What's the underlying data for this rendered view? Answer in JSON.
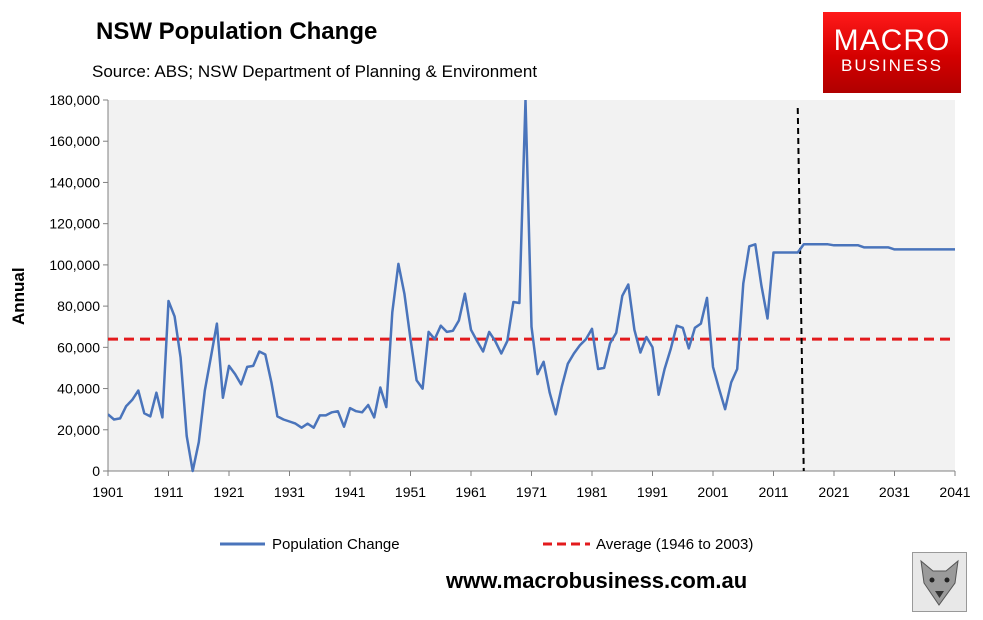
{
  "header": {
    "title": "NSW Population Change",
    "source": "Source: ABS; NSW Department of Planning & Environment"
  },
  "logo": {
    "line1": "MACRO",
    "line2": "BUSINESS"
  },
  "footer": {
    "url": "www.macrobusiness.com.au"
  },
  "chart_data": {
    "type": "line",
    "title": "NSW Population Change",
    "xlabel": "",
    "ylabel": "Annual",
    "xlim": [
      1901,
      2041
    ],
    "ylim": [
      0,
      180000
    ],
    "x_ticks": [
      1901,
      1911,
      1921,
      1931,
      1941,
      1951,
      1961,
      1971,
      1981,
      1991,
      2001,
      2011,
      2021,
      2031,
      2041
    ],
    "y_ticks": [
      0,
      20000,
      40000,
      60000,
      80000,
      100000,
      120000,
      140000,
      160000,
      180000
    ],
    "x_tick_labels": [
      "1901",
      "1911",
      "1921",
      "1931",
      "1941",
      "1951",
      "1961",
      "1971",
      "1981",
      "1991",
      "2001",
      "2011",
      "2021",
      "2031",
      "2041"
    ],
    "y_tick_labels": [
      "0",
      "20,000",
      "40,000",
      "60,000",
      "80,000",
      "100,000",
      "120,000",
      "140,000",
      "160,000",
      "180,000"
    ],
    "grid": false,
    "legend_position": "bottom",
    "series": [
      {
        "name": "Population Change",
        "style": "solid",
        "color": "#4a74bb",
        "x": [
          1901,
          1902,
          1903,
          1904,
          1905,
          1906,
          1907,
          1908,
          1909,
          1910,
          1911,
          1912,
          1913,
          1914,
          1915,
          1916,
          1917,
          1918,
          1919,
          1920,
          1921,
          1922,
          1923,
          1924,
          1925,
          1926,
          1927,
          1928,
          1929,
          1930,
          1931,
          1932,
          1933,
          1934,
          1935,
          1936,
          1937,
          1938,
          1939,
          1940,
          1941,
          1942,
          1943,
          1944,
          1945,
          1946,
          1947,
          1948,
          1949,
          1950,
          1951,
          1952,
          1953,
          1954,
          1955,
          1956,
          1957,
          1958,
          1959,
          1960,
          1961,
          1962,
          1963,
          1964,
          1965,
          1966,
          1967,
          1968,
          1969,
          1970,
          1971,
          1972,
          1973,
          1974,
          1975,
          1976,
          1977,
          1978,
          1979,
          1980,
          1981,
          1982,
          1983,
          1984,
          1985,
          1986,
          1987,
          1988,
          1989,
          1990,
          1991,
          1992,
          1993,
          1994,
          1995,
          1996,
          1997,
          1998,
          1999,
          2000,
          2001,
          2002,
          2003,
          2004,
          2005,
          2006,
          2007,
          2008,
          2009,
          2010,
          2011,
          2012,
          2013,
          2014,
          2015,
          2016,
          2017,
          2018,
          2019,
          2020,
          2021,
          2022,
          2023,
          2024,
          2025,
          2026,
          2027,
          2028,
          2029,
          2030,
          2031,
          2032,
          2033,
          2034,
          2035,
          2036,
          2037,
          2038,
          2039,
          2040,
          2041
        ],
        "values": [
          27500,
          25000,
          25500,
          31500,
          34500,
          39000,
          28000,
          26500,
          38000,
          26000,
          82500,
          75000,
          55000,
          17000,
          0,
          14000,
          39000,
          55000,
          71500,
          35500,
          51000,
          47000,
          42000,
          50500,
          51000,
          58000,
          56500,
          43000,
          26500,
          25000,
          24000,
          23000,
          21000,
          23000,
          21000,
          27000,
          27000,
          28500,
          29000,
          21500,
          30500,
          29000,
          28500,
          32000,
          26000,
          40500,
          31000,
          77000,
          100500,
          86000,
          64000,
          44000,
          40000,
          67500,
          64000,
          70500,
          67500,
          68000,
          73000,
          86000,
          68500,
          63000,
          58000,
          67500,
          63000,
          57000,
          63000,
          82000,
          81500,
          180000,
          70000,
          47000,
          53000,
          38000,
          27500,
          41000,
          52000,
          57000,
          61000,
          64000,
          69000,
          49500,
          50000,
          62000,
          67000,
          85000,
          90500,
          68500,
          57500,
          65000,
          60000,
          37000,
          49500,
          59000,
          70500,
          69500,
          59500,
          69500,
          71500,
          84000,
          50500,
          40000,
          30000,
          43000,
          49500,
          91000,
          109000,
          110000,
          90000,
          74000,
          106000,
          106000,
          106000,
          106000,
          106000,
          110000,
          110000,
          110000,
          110000,
          110000,
          109500,
          109500,
          109500,
          109500,
          109500,
          108500,
          108500,
          108500,
          108500,
          108500,
          107500,
          107500,
          107500,
          107500,
          107500,
          107500,
          107500,
          107500,
          107500,
          107500,
          107500
        ]
      },
      {
        "name": "Average (1946 to 2003)",
        "style": "dashed",
        "color": "#e31a1c",
        "x": [
          1901,
          2041
        ],
        "values": [
          64000,
          64000
        ]
      }
    ],
    "annotations": [
      {
        "type": "vertical-dashed-line",
        "x": 2016,
        "color": "#000000"
      }
    ]
  }
}
